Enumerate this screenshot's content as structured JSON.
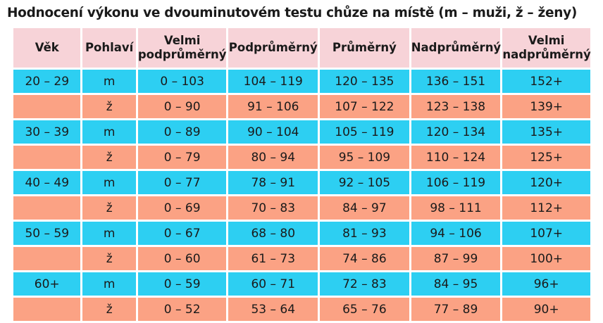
{
  "title": "Hodnocení výkonu ve dvouminutovém testu chůze na místě  (m – muži, ž – ženy)",
  "headers": [
    {
      "lines": [
        "Věk"
      ]
    },
    {
      "lines": [
        "Pohlaví"
      ]
    },
    {
      "lines": [
        "Velmi",
        "podprůměrný"
      ]
    },
    {
      "lines": [
        "Podprůměrný"
      ]
    },
    {
      "lines": [
        "Průměrný"
      ]
    },
    {
      "lines": [
        "Nadprůměrný"
      ]
    },
    {
      "lines": [
        "Velmi",
        "nadprůměrný"
      ]
    }
  ],
  "rows": [
    {
      "age": "20 – 29",
      "sex": "m",
      "c1": "0 – 103",
      "c2": "104 – 119",
      "c3": "120 – 135",
      "c4": "136 – 151",
      "c5": "152+"
    },
    {
      "age": "",
      "sex": "ž",
      "c1": "0 – 90",
      "c2": "91 – 106",
      "c3": "107 – 122",
      "c4": "123 – 138",
      "c5": "139+"
    },
    {
      "age": "30 – 39",
      "sex": "m",
      "c1": "0 – 89",
      "c2": "90 – 104",
      "c3": "105 – 119",
      "c4": "120 – 134",
      "c5": "135+"
    },
    {
      "age": "",
      "sex": "ž",
      "c1": "0 – 79",
      "c2": "80 – 94",
      "c3": "95 – 109",
      "c4": "110 – 124",
      "c5": "125+"
    },
    {
      "age": "40 – 49",
      "sex": "m",
      "c1": "0 – 77",
      "c2": "78 – 91",
      "c3": "92 – 105",
      "c4": "106 – 119",
      "c5": "120+"
    },
    {
      "age": "",
      "sex": "ž",
      "c1": "0 – 69",
      "c2": "70 – 83",
      "c3": "84 – 97",
      "c4": "98 – 111",
      "c5": "112+"
    },
    {
      "age": "50 – 59",
      "sex": "m",
      "c1": "0 – 67",
      "c2": "68 – 80",
      "c3": "81 – 93",
      "c4": "94 – 106",
      "c5": "107+"
    },
    {
      "age": "",
      "sex": "ž",
      "c1": "0 – 60",
      "c2": "61 – 73",
      "c3": "74 – 86",
      "c4": "87 – 99",
      "c5": "100+"
    },
    {
      "age": "60+",
      "sex": "m",
      "c1": "0 – 59",
      "c2": "60 – 71",
      "c3": "72 – 83",
      "c4": "84 – 95",
      "c5": "96+"
    },
    {
      "age": "",
      "sex": "ž",
      "c1": "0 – 52",
      "c2": "53 – 64",
      "c3": "65 – 76",
      "c4": "77 – 89",
      "c5": "90+"
    }
  ],
  "colors": {
    "header": "#f7d3d8",
    "male_row": "#2dcff2",
    "female_row": "#fba284"
  }
}
